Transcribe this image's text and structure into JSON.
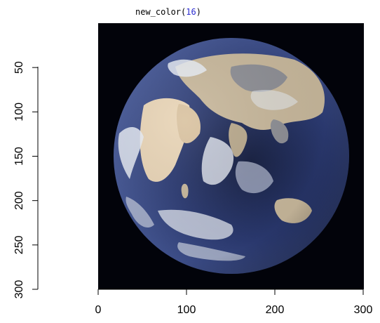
{
  "title": {
    "func": "new_color",
    "open_paren": "(",
    "arg": "16",
    "close_paren": ")"
  },
  "chart_data": {
    "type": "image",
    "title": "new_color(16)",
    "xlabel": "",
    "ylabel": "",
    "xlim": [
      0,
      300
    ],
    "ylim": [
      300,
      0
    ],
    "x_ticks": [
      0,
      100,
      200,
      300
    ],
    "y_ticks": [
      50,
      100,
      150,
      200,
      250,
      300
    ],
    "grid": false,
    "image_colors": 16,
    "colors": {
      "background": "#02030a",
      "ocean_dark": "#141d3f",
      "ocean_mid": "#2c3b73",
      "ocean_light": "#4a5d9c",
      "cloud": "#e8ecf4",
      "cloud_mid": "#b9c1d6",
      "land_desert": "#e8d4b6",
      "land_tan": "#c8b89c",
      "land_grey": "#8e8f95"
    }
  }
}
